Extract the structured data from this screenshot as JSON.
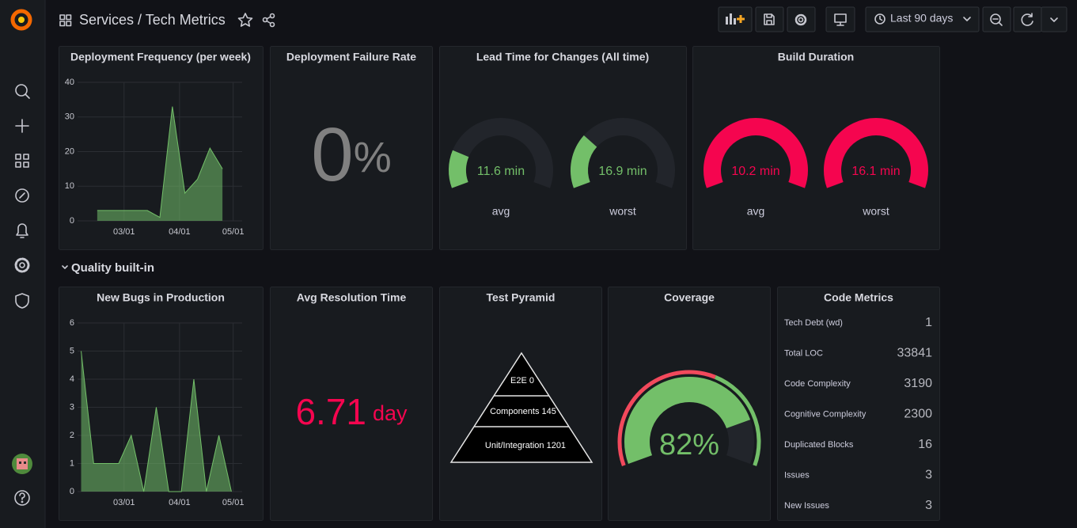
{
  "header": {
    "title": "Services / Tech Metrics",
    "time_range": "Last 90 days"
  },
  "deployment_frequency": {
    "title": "Deployment Frequency (per week)",
    "chart_data": {
      "type": "area",
      "x": [
        "02/14",
        "02/21",
        "02/28",
        "03/07",
        "03/14",
        "03/21",
        "03/28",
        "04/04",
        "04/11",
        "04/18",
        "04/25"
      ],
      "values": [
        3,
        3,
        3,
        3,
        3,
        1,
        33,
        8,
        12,
        21,
        15
      ],
      "color": "#73bf69",
      "xlim": [
        "02/03",
        "05/06"
      ],
      "xticks": [
        "03/01",
        "04/01",
        "05/01"
      ],
      "ylim": [
        0,
        40
      ],
      "yticks": [
        0,
        10,
        20,
        30,
        40
      ],
      "grid": true
    }
  },
  "deployment_failure_rate": {
    "title": "Deployment Failure Rate",
    "value": 0,
    "unit": "%"
  },
  "lead_time": {
    "title": "Lead Time for Changes (All time)",
    "gauges": [
      {
        "type": "gauge",
        "value": 11.6,
        "value_label": "11.6 min",
        "label": "avg",
        "ylim": [
          0,
          60
        ],
        "color": "#73bf69"
      },
      {
        "type": "gauge",
        "value": 16.9,
        "value_label": "16.9 min",
        "label": "worst",
        "ylim": [
          0,
          60
        ],
        "color": "#73bf69"
      }
    ]
  },
  "build_duration": {
    "title": "Build Duration",
    "gauges": [
      {
        "type": "gauge",
        "value": 10.2,
        "value_label": "10.2 min",
        "label": "avg",
        "ylim": [
          0,
          10
        ],
        "color": "#f5054f"
      },
      {
        "type": "gauge",
        "value": 16.1,
        "value_label": "16.1 min",
        "label": "worst",
        "ylim": [
          0,
          10
        ],
        "color": "#f5054f"
      }
    ]
  },
  "row": {
    "title": "Quality built-in"
  },
  "new_bugs": {
    "title": "New Bugs in Production",
    "chart_data": {
      "type": "area",
      "x": [
        "02/05",
        "02/12",
        "02/19",
        "02/26",
        "03/05",
        "03/12",
        "03/19",
        "03/26",
        "04/02",
        "04/09",
        "04/16",
        "04/23",
        "04/30"
      ],
      "values": [
        5,
        1,
        1,
        1,
        2,
        0,
        3,
        0,
        0,
        4,
        0,
        2,
        0
      ],
      "color": "#73bf69",
      "xlim": [
        "02/03",
        "05/06"
      ],
      "xticks": [
        "03/01",
        "04/01",
        "05/01"
      ],
      "ylim": [
        0,
        6
      ],
      "yticks": [
        0,
        1,
        2,
        3,
        4,
        5,
        6
      ],
      "grid": true
    }
  },
  "avg_resolution_time": {
    "title": "Avg Resolution Time",
    "value": 6.71,
    "unit": "day"
  },
  "test_pyramid": {
    "title": "Test Pyramid",
    "levels": [
      "E2E 0",
      "Components 145",
      "Unit/Integration 1201"
    ]
  },
  "coverage": {
    "title": "Coverage",
    "chart_data": {
      "type": "gauge",
      "value": 82,
      "unit": "%",
      "ylim": [
        0,
        100
      ],
      "color": "#73bf69",
      "thresholds": [
        {
          "value": 0,
          "color": "#f2495c"
        },
        {
          "value": 60,
          "color": "#73bf69"
        }
      ]
    }
  },
  "code_metrics": {
    "title": "Code Metrics",
    "rows": [
      {
        "label": "Tech Debt (wd)",
        "value": 1
      },
      {
        "label": "Total LOC",
        "value": 33841
      },
      {
        "label": "Code Complexity",
        "value": 3190
      },
      {
        "label": "Cognitive Complexity",
        "value": 2300
      },
      {
        "label": "Duplicated Blocks",
        "value": 16
      },
      {
        "label": "Issues",
        "value": 3
      },
      {
        "label": "New Issues",
        "value": 3
      }
    ]
  }
}
